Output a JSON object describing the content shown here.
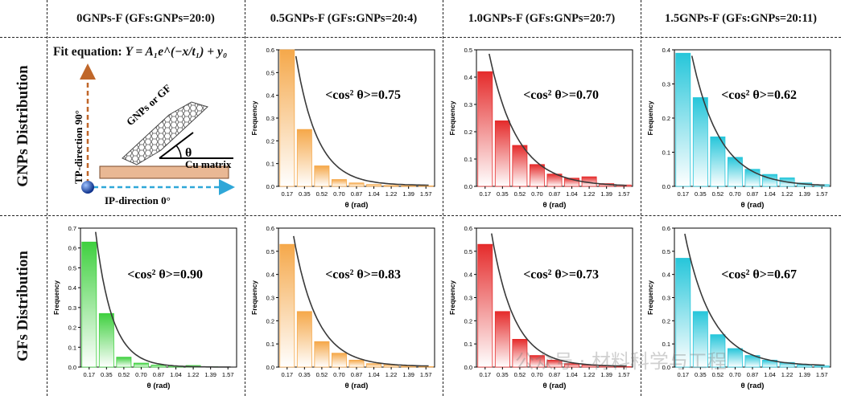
{
  "headers": [
    "0GNPs-F (GFs:GNPs=20:0)",
    "0.5GNPs-F (GFs:GNPs=20:4)",
    "1.0GNPs-F (GFs:GNPs=20:7)",
    "1.5GNPs-F (GFs:GNPs=20:11)"
  ],
  "row_labels": [
    "GNPs Distribution",
    "GFs Distribution"
  ],
  "schematic": {
    "fit_label": "Fit equation:",
    "fit_formula": "Y = A₁e^(−x/t₁) + y₀",
    "tp_label": "TP-direction 90°",
    "ip_label": "IP-direction 0°",
    "flake_label": "GNPs or GF",
    "matrix_label": "Cu matrix",
    "angle_label": "θ"
  },
  "watermark": "公众号 · 材料科学与工程",
  "colors": {
    "green": "#3fd03f",
    "orange": "#f5a84a",
    "red": "#e52b2b",
    "cyan": "#26c6da",
    "fit_curve": "#3a3a3a",
    "arrow_tp": "#c0672a",
    "arrow_ip": "#2fa7d8",
    "matrix": "#e9b894"
  },
  "chart_data": [
    {
      "id": "gnps-0.5",
      "type": "bar",
      "row": 0,
      "col": 1,
      "color": "orange",
      "categories": [
        "0.17",
        "0.35",
        "0.52",
        "0.70",
        "0.87",
        "1.04",
        "1.22",
        "1.39",
        "1.57"
      ],
      "values": [
        0.6,
        0.25,
        0.09,
        0.03,
        0.015,
        0.008,
        0.004,
        0.003,
        0.002
      ],
      "fit": {
        "A": 1.25,
        "t": 0.23,
        "y0": 0.004
      },
      "ylim": [
        0,
        0.6
      ],
      "yticks": [
        "0.0",
        "0.1",
        "0.2",
        "0.3",
        "0.4",
        "0.5",
        "0.6"
      ],
      "xlabel": "θ (rad)",
      "ylabel": "Frequency",
      "annotation": "<cos² θ>=0.75"
    },
    {
      "id": "gnps-1.0",
      "type": "bar",
      "row": 0,
      "col": 2,
      "color": "red",
      "categories": [
        "0.17",
        "0.35",
        "0.52",
        "0.70",
        "0.87",
        "1.04",
        "1.22",
        "1.39",
        "1.57"
      ],
      "values": [
        0.42,
        0.24,
        0.15,
        0.08,
        0.045,
        0.03,
        0.035,
        0.01,
        0.005
      ],
      "fit": {
        "A": 0.75,
        "t": 0.3,
        "y0": 0.0
      },
      "ylim": [
        0,
        0.5
      ],
      "yticks": [
        "0.0",
        "0.1",
        "0.2",
        "0.3",
        "0.4",
        "0.5"
      ],
      "xlabel": "θ (rad)",
      "ylabel": "Frequency",
      "annotation": "<cos² θ>=0.70"
    },
    {
      "id": "gnps-1.5",
      "type": "bar",
      "row": 0,
      "col": 3,
      "color": "cyan",
      "categories": [
        "0.17",
        "0.35",
        "0.52",
        "0.70",
        "0.87",
        "1.04",
        "1.22",
        "1.39",
        "1.57"
      ],
      "values": [
        0.39,
        0.26,
        0.145,
        0.085,
        0.05,
        0.035,
        0.025,
        0.01,
        0.005
      ],
      "fit": {
        "A": 0.7,
        "t": 0.3,
        "y0": 0.0
      },
      "ylim": [
        0,
        0.4
      ],
      "yticks": [
        "0.0",
        "0.1",
        "0.2",
        "0.3",
        "0.4"
      ],
      "xlabel": "θ (rad)",
      "ylabel": "Frequency",
      "annotation": "<cos² θ>=0.62"
    },
    {
      "id": "gfs-0",
      "type": "bar",
      "row": 1,
      "col": 0,
      "color": "green",
      "categories": [
        "0.17",
        "0.35",
        "0.52",
        "0.70",
        "0.87",
        "1.04",
        "1.22",
        "1.39",
        "1.57"
      ],
      "values": [
        0.63,
        0.27,
        0.05,
        0.02,
        0.01,
        0.005,
        0.008,
        0.002,
        0.0
      ],
      "fit": {
        "A": 1.62,
        "t": 0.18,
        "y0": 0.0
      },
      "ylim": [
        0,
        0.7
      ],
      "yticks": [
        "0.0",
        "0.1",
        "0.2",
        "0.3",
        "0.4",
        "0.5",
        "0.6",
        "0.7"
      ],
      "xlabel": "θ (rad)",
      "ylabel": "Frequency",
      "annotation": "<cos² θ>=0.90"
    },
    {
      "id": "gfs-0.5",
      "type": "bar",
      "row": 1,
      "col": 1,
      "color": "orange",
      "categories": [
        "0.17",
        "0.35",
        "0.52",
        "0.70",
        "0.87",
        "1.04",
        "1.22",
        "1.39",
        "1.57"
      ],
      "values": [
        0.53,
        0.24,
        0.11,
        0.06,
        0.03,
        0.015,
        0.01,
        0.004,
        0.002
      ],
      "fit": {
        "A": 1.05,
        "t": 0.25,
        "y0": 0.003
      },
      "ylim": [
        0,
        0.6
      ],
      "yticks": [
        "0.0",
        "0.1",
        "0.2",
        "0.3",
        "0.4",
        "0.5",
        "0.6"
      ],
      "xlabel": "θ (rad)",
      "ylabel": "Frequency",
      "annotation": "<cos² θ>=0.83"
    },
    {
      "id": "gfs-1.0",
      "type": "bar",
      "row": 1,
      "col": 2,
      "color": "red",
      "categories": [
        "0.17",
        "0.35",
        "0.52",
        "0.70",
        "0.87",
        "1.04",
        "1.22",
        "1.39",
        "1.57"
      ],
      "values": [
        0.53,
        0.24,
        0.12,
        0.05,
        0.03,
        0.015,
        0.01,
        0.005,
        0.002
      ],
      "fit": {
        "A": 1.1,
        "t": 0.24,
        "y0": 0.003
      },
      "ylim": [
        0,
        0.6
      ],
      "yticks": [
        "0.0",
        "0.1",
        "0.2",
        "0.3",
        "0.4",
        "0.5",
        "0.6"
      ],
      "xlabel": "θ (rad)",
      "ylabel": "Frequency",
      "annotation": "<cos² θ>=0.73"
    },
    {
      "id": "gfs-1.5",
      "type": "bar",
      "row": 1,
      "col": 3,
      "color": "cyan",
      "categories": [
        "0.17",
        "0.35",
        "0.52",
        "0.70",
        "0.87",
        "1.04",
        "1.22",
        "1.39",
        "1.57"
      ],
      "values": [
        0.47,
        0.24,
        0.14,
        0.08,
        0.05,
        0.03,
        0.02,
        0.01,
        0.005
      ],
      "fit": {
        "A": 0.82,
        "t": 0.29,
        "y0": 0.005
      },
      "ylim": [
        0,
        0.6
      ],
      "yticks": [
        "0.0",
        "0.1",
        "0.2",
        "0.3",
        "0.4",
        "0.5",
        "0.6"
      ],
      "xlabel": "θ (rad)",
      "ylabel": "Frequency",
      "annotation": "<cos² θ>=0.67"
    }
  ]
}
